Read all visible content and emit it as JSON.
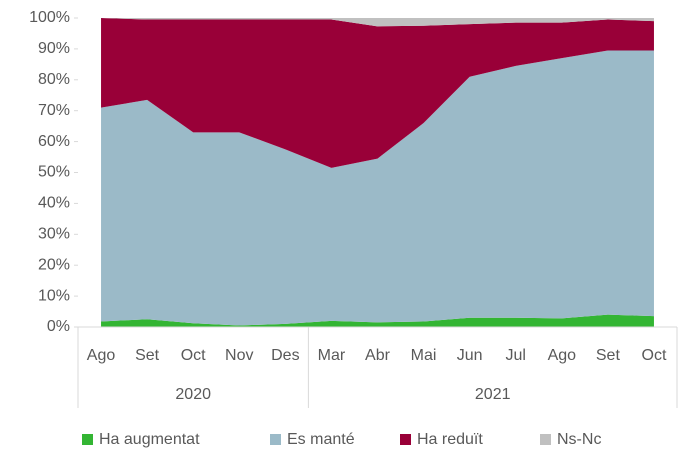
{
  "chart_data": {
    "type": "stacked_area",
    "categories": [
      "Ago",
      "Set",
      "Oct",
      "Nov",
      "Des",
      "Mar",
      "Abr",
      "Mai",
      "Jun",
      "Jul",
      "Ago",
      "Set",
      "Oct"
    ],
    "groups": [
      {
        "label": "2020",
        "count": 5
      },
      {
        "label": "2021",
        "count": 8
      }
    ],
    "series": [
      {
        "name": "Ha augmentat",
        "color": "#33b533",
        "values": [
          1.8,
          2.5,
          1.2,
          0.5,
          1.0,
          2.0,
          1.5,
          1.8,
          3.0,
          3.0,
          2.8,
          4.0,
          3.5
        ]
      },
      {
        "name": "Es manté",
        "color": "#9bbac8",
        "values": [
          69.2,
          71,
          61.8,
          62.5,
          56.5,
          49.5,
          53,
          64.2,
          78,
          81.5,
          84.2,
          85.5,
          86
        ]
      },
      {
        "name": "Ha reduït",
        "color": "#990038",
        "values": [
          29,
          26,
          36.5,
          36.5,
          42,
          48,
          42.8,
          31.5,
          17,
          14,
          11.5,
          10,
          9.5
        ]
      },
      {
        "name": "Ns-Nc",
        "color": "#c0c0c0",
        "values": [
          0,
          0.5,
          0.5,
          0.5,
          0.5,
          0.5,
          2.7,
          2.5,
          2,
          1.5,
          1.5,
          0.5,
          1
        ]
      }
    ],
    "ylim": [
      0,
      100
    ],
    "yticks": [
      {
        "value": 0,
        "label": "0%"
      },
      {
        "value": 10,
        "label": "10%"
      },
      {
        "value": 20,
        "label": "20%"
      },
      {
        "value": 30,
        "label": "30%"
      },
      {
        "value": 40,
        "label": "40%"
      },
      {
        "value": 50,
        "label": "50%"
      },
      {
        "value": 60,
        "label": "60%"
      },
      {
        "value": 70,
        "label": "70%"
      },
      {
        "value": 80,
        "label": "80%"
      },
      {
        "value": 90,
        "label": "90%"
      },
      {
        "value": 100,
        "label": "100%"
      }
    ],
    "legend": "bottom"
  }
}
